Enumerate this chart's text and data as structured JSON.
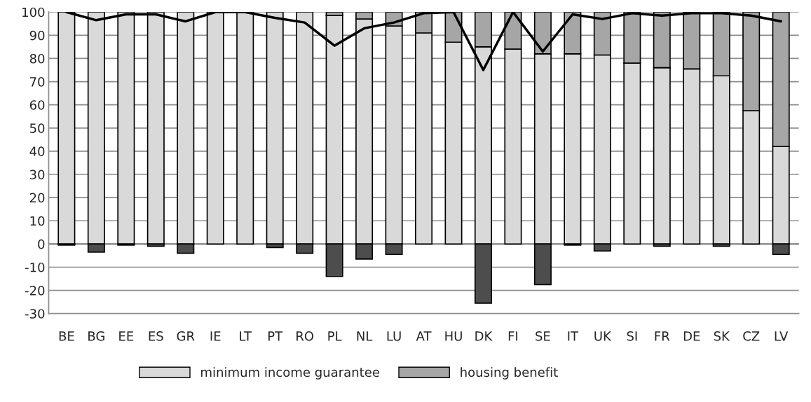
{
  "chart_data": {
    "type": "bar",
    "stacked": true,
    "categories": [
      "BE",
      "BG",
      "EE",
      "ES",
      "GR",
      "IE",
      "LT",
      "PT",
      "RO",
      "PL",
      "NL",
      "LU",
      "AT",
      "HU",
      "DK",
      "FI",
      "SE",
      "IT",
      "UK",
      "SI",
      "FR",
      "DE",
      "SK",
      "CZ",
      "LV"
    ],
    "series": [
      {
        "name": "minimum income guarantee",
        "color": "#d9d9d9",
        "values": [
          100,
          100,
          100,
          100,
          100,
          100,
          100,
          100,
          100,
          98.5,
          97,
          94,
          91,
          87,
          85,
          84,
          82,
          82,
          81.5,
          78,
          76,
          75.5,
          72.5,
          57.5,
          42
        ]
      },
      {
        "name": "housing benefit",
        "color": "#a6a6a6",
        "values": [
          0,
          0,
          0,
          0,
          0,
          0,
          0,
          0,
          0,
          1.5,
          3,
          6,
          9,
          13,
          15,
          16,
          18,
          18,
          18.5,
          22,
          24,
          24.5,
          27.5,
          42.5,
          58
        ]
      },
      {
        "color": "#4d4d4d",
        "values": [
          -0.5,
          -3.5,
          -0.5,
          -1,
          -4,
          0,
          0,
          -1.5,
          -4,
          -14,
          -6.5,
          -4.5,
          0,
          0,
          -25.5,
          0,
          -17.5,
          -0.5,
          -3,
          0,
          -1,
          0,
          -1,
          0,
          -4.5
        ]
      },
      {
        "type": "line",
        "color": "#000000",
        "values": [
          100,
          96.5,
          99,
          99,
          96,
          100,
          100,
          97.5,
          95.5,
          85.5,
          93,
          95.5,
          99.5,
          100,
          75,
          100,
          83,
          99,
          97,
          99.5,
          98.5,
          99.5,
          99.5,
          98.5,
          96
        ]
      }
    ],
    "ylim": [
      -30,
      100
    ],
    "yticks": [
      -30,
      -20,
      -10,
      0,
      10,
      20,
      30,
      40,
      50,
      60,
      70,
      80,
      90,
      100
    ],
    "grid": "y",
    "legend": "bottom",
    "marker": "none",
    "line_style": "solid"
  }
}
